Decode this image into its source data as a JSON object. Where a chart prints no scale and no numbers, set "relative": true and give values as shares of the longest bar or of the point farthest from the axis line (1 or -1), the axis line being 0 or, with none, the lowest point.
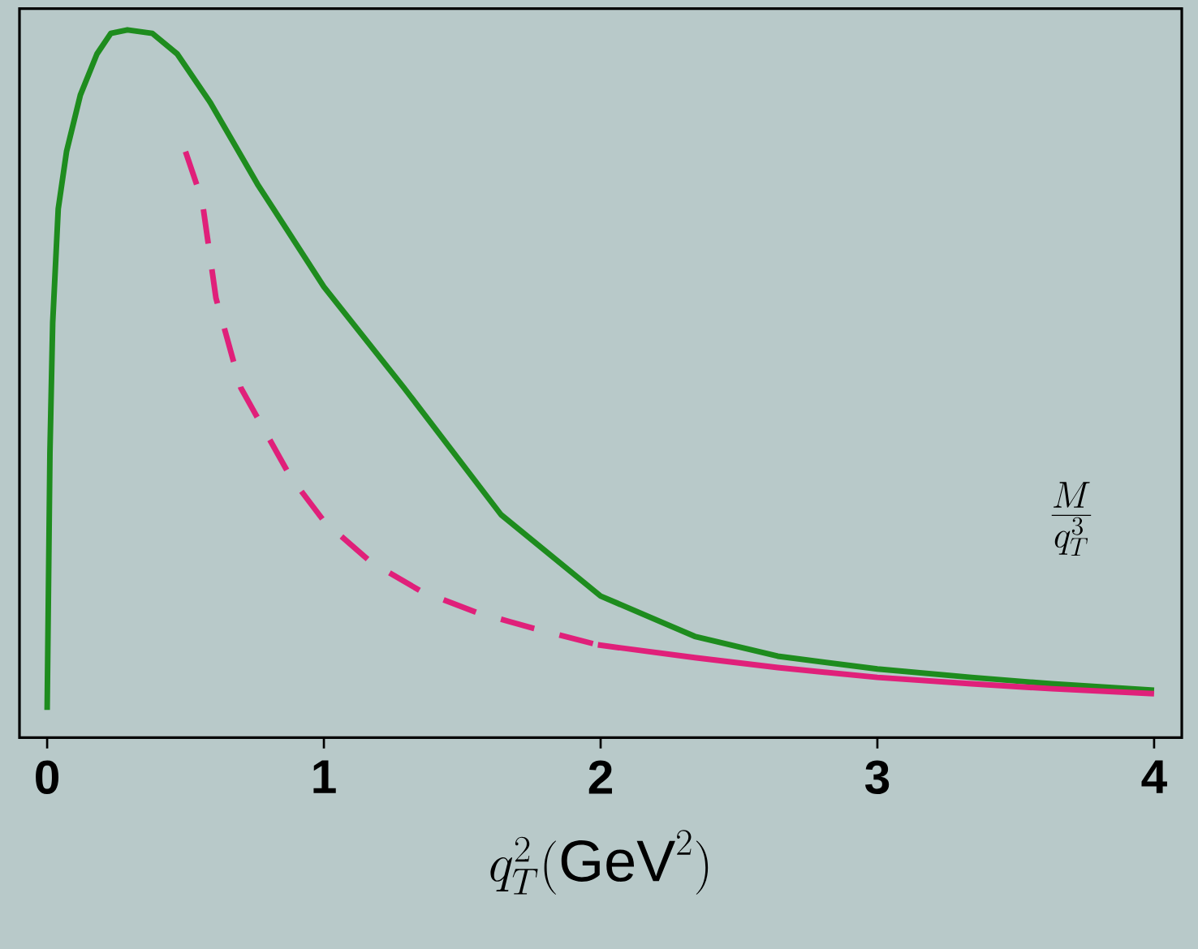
{
  "chart_data": {
    "type": "line",
    "relative": true,
    "xlabel": "q_T^2(\\mathrm{GeV}^2)",
    "xlim": [
      -0.1,
      4.1
    ],
    "xticks": [
      0,
      1,
      2,
      3,
      4
    ],
    "grid": false,
    "marker": "none",
    "annotations": [
      "\\frac{M}{q_T^3}"
    ],
    "series": [
      {
        "color": "#1e8c1e",
        "line_style": "solid",
        "x": [
          0,
          0.01,
          0.02,
          0.04,
          0.07,
          0.12,
          0.18,
          0.23,
          0.29,
          0.38,
          0.47,
          0.59,
          0.76,
          1.0,
          1.29,
          1.64,
          2.0,
          2.34,
          2.64,
          3.0,
          3.34,
          3.63,
          4.0
        ],
        "values": [
          0.039,
          0.402,
          0.586,
          0.747,
          0.828,
          0.908,
          0.966,
          0.995,
          1,
          0.995,
          0.966,
          0.897,
          0.782,
          0.637,
          0.494,
          0.315,
          0.2,
          0.143,
          0.115,
          0.097,
          0.085,
          0.076,
          0.067
        ]
      },
      {
        "color": "#e0207a",
        "line_style": "dashed",
        "x": [
          0.5,
          0.56,
          0.61,
          0.7,
          0.88,
          1.0,
          1.17,
          1.35,
          1.55,
          1.76,
          1.99
        ],
        "values": [
          0.828,
          0.759,
          0.621,
          0.494,
          0.368,
          0.306,
          0.248,
          0.207,
          0.177,
          0.154,
          0.131
        ]
      },
      {
        "color": "#e0207a",
        "line_style": "solid",
        "x": [
          1.99,
          2.34,
          2.64,
          3.0,
          3.34,
          3.63,
          4.0
        ],
        "values": [
          0.131,
          0.113,
          0.099,
          0.085,
          0.076,
          0.069,
          0.062
        ]
      }
    ]
  }
}
